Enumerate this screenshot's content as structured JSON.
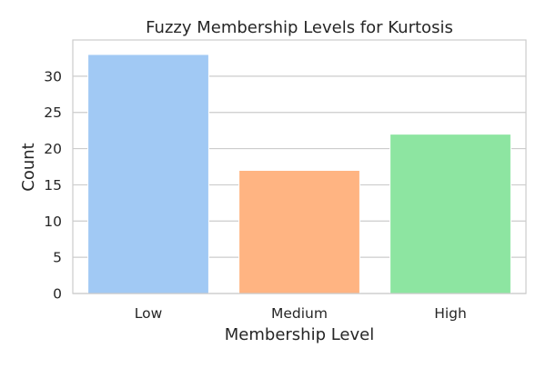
{
  "chart_data": {
    "type": "bar",
    "title": "Fuzzy Membership Levels for Kurtosis",
    "xlabel": "Membership Level",
    "ylabel": "Count",
    "categories": [
      "Low",
      "Medium",
      "High"
    ],
    "values": [
      33,
      17,
      22
    ],
    "ylim": [
      0,
      35
    ],
    "yticks": [
      0,
      5,
      10,
      15,
      20,
      25,
      30
    ],
    "grid": "horizontal",
    "legend": "none",
    "bar_colors": [
      "#a1c9f4",
      "#ffb482",
      "#8de5a1"
    ]
  }
}
